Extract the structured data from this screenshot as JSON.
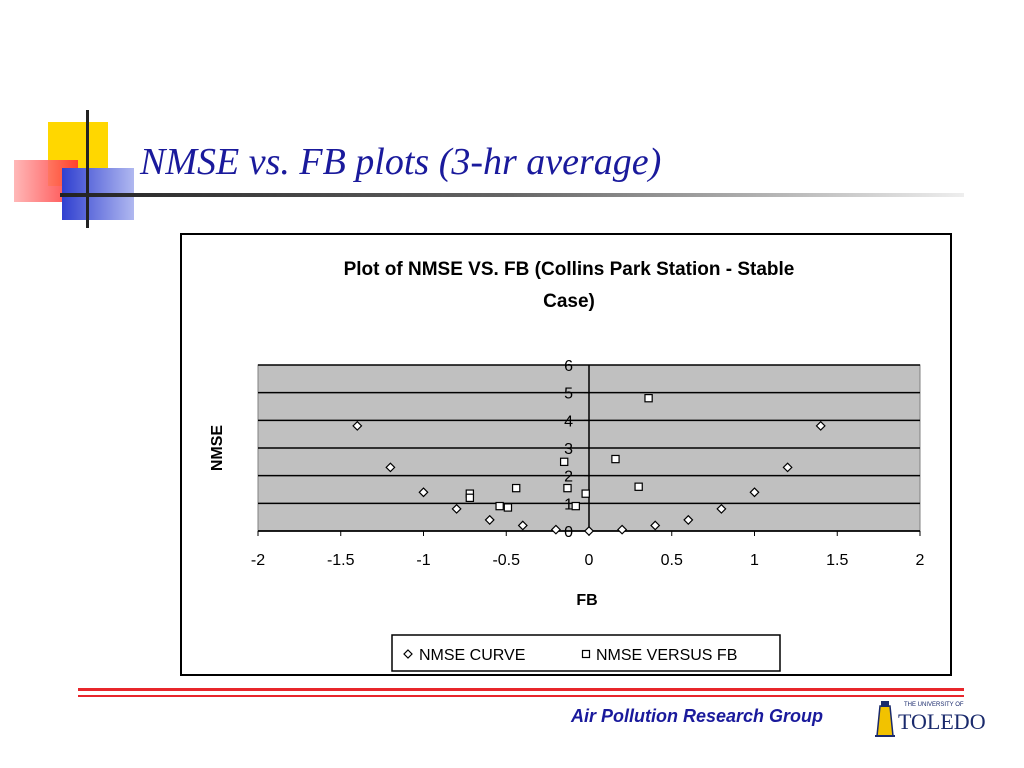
{
  "slide": {
    "title": "NMSE vs. FB plots (3-hr average)",
    "footer": "Air Pollution Research Group",
    "logo_small": "THE UNIVERSITY OF",
    "logo_main": "TOLEDO"
  },
  "colors": {
    "title": "#1a1a9c",
    "footer_rule": "#e8262b",
    "plot_area": "#c0c0c0",
    "deco_yellow": "#ffd700",
    "deco_red": "#ff3030",
    "deco_blue": "#3040d0"
  },
  "chart_data": {
    "type": "scatter",
    "title_lines": [
      "Plot of NMSE VS. FB (Collins Park Station - Stable",
      "Case)"
    ],
    "xlabel": "FB",
    "ylabel": "NMSE",
    "xlim": [
      -2,
      2
    ],
    "ylim": [
      0,
      6
    ],
    "xticks": [
      "-2",
      "-1.5",
      "-1",
      "-0.5",
      "0",
      "0.5",
      "1",
      "1.5",
      "2"
    ],
    "yticks": [
      "0",
      "1",
      "2",
      "3",
      "4",
      "5",
      "6"
    ],
    "grid": "horizontal",
    "legend_position": "bottom",
    "series": [
      {
        "name": "NMSE CURVE",
        "marker": "diamond",
        "x": [
          -1.4,
          -1.2,
          -1.0,
          -0.8,
          -0.6,
          -0.4,
          -0.2,
          0.0,
          0.2,
          0.4,
          0.6,
          0.8,
          1.0,
          1.2,
          1.4
        ],
        "y": [
          3.8,
          2.3,
          1.4,
          0.8,
          0.4,
          0.2,
          0.05,
          0.0,
          0.05,
          0.2,
          0.4,
          0.8,
          1.4,
          2.3,
          3.8
        ]
      },
      {
        "name": "NMSE VERSUS FB",
        "marker": "square",
        "x": [
          0.36,
          -0.15,
          0.16,
          0.3,
          -0.44,
          -0.72,
          -0.72,
          -0.13,
          -0.02,
          -0.08,
          -0.54,
          -0.49
        ],
        "y": [
          4.8,
          2.5,
          2.6,
          1.6,
          1.55,
          1.35,
          1.2,
          1.55,
          1.35,
          0.9,
          0.9,
          0.85
        ]
      }
    ]
  }
}
